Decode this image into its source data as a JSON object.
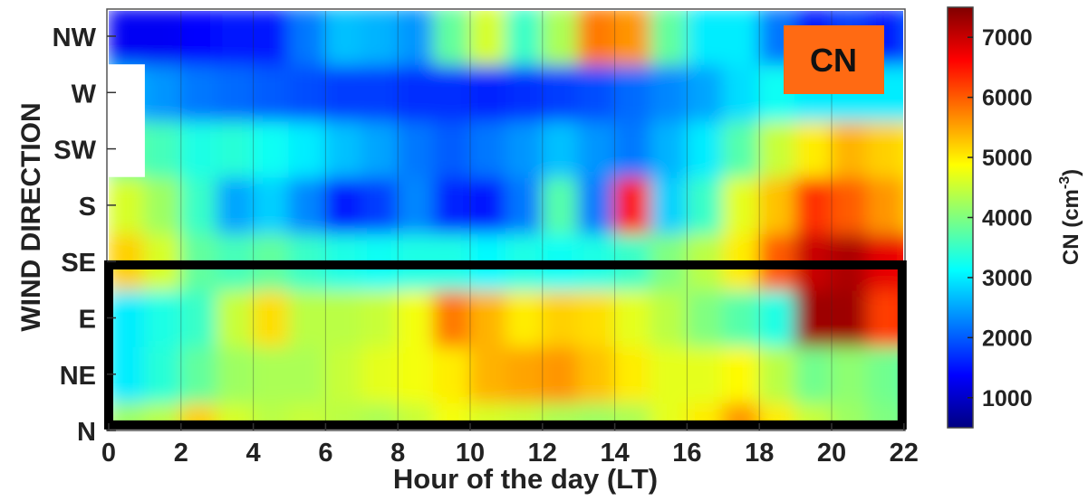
{
  "chart_data": {
    "type": "heatmap",
    "title": "",
    "xlabel": "Hour of the day (LT)",
    "ylabel": "WIND DIRECTION",
    "x_ticks": [
      0,
      2,
      4,
      6,
      8,
      10,
      12,
      14,
      16,
      18,
      20,
      22
    ],
    "xlim": [
      0,
      22
    ],
    "y_categories": [
      "N",
      "NE",
      "E",
      "SE",
      "S",
      "SW",
      "W",
      "NW"
    ],
    "colorbar": {
      "label": "CN (cm",
      "label_exponent": "-3",
      "label_close": ")",
      "ticks": [
        1000,
        2000,
        3000,
        4000,
        5000,
        6000,
        7000
      ],
      "range": [
        500,
        7500
      ],
      "colormap": "jet"
    },
    "badge": {
      "text": "CN",
      "color": "#ff6a13"
    },
    "highlight_box": {
      "from": "N",
      "to": "SE",
      "hours": [
        0,
        22
      ],
      "color": "#000000"
    },
    "grid": true,
    "missing_data": [
      {
        "hours": [
          0,
          1
        ],
        "directions": [
          "SW",
          "W"
        ]
      }
    ],
    "values": [
      [
        4200,
        4400,
        5200,
        4600,
        4400,
        4500,
        4400,
        4300,
        4500,
        4800,
        4600,
        4500,
        4300,
        4200,
        4300,
        4700,
        5000,
        5600,
        5000,
        4500,
        4200,
        4000,
        3800
      ],
      [
        3000,
        3400,
        3800,
        4200,
        4300,
        4300,
        4500,
        4700,
        4800,
        5000,
        5400,
        5500,
        5600,
        5300,
        5000,
        4700,
        4700,
        4900,
        4400,
        3900,
        4100,
        3900,
        3600
      ],
      [
        3000,
        3300,
        3500,
        4500,
        5100,
        4400,
        4400,
        4500,
        4800,
        5800,
        5400,
        5000,
        5200,
        5100,
        4700,
        4400,
        4000,
        3700,
        3300,
        7300,
        7300,
        6200,
        6500
      ],
      [
        5200,
        4600,
        3800,
        3600,
        3800,
        3500,
        3300,
        3200,
        3300,
        3300,
        3100,
        3300,
        3200,
        3300,
        3500,
        4000,
        4400,
        5000,
        6000,
        7000,
        7200,
        6800,
        6500
      ],
      [
        4600,
        4200,
        3500,
        2500,
        2800,
        2300,
        1500,
        1800,
        2300,
        1600,
        1500,
        2200,
        3700,
        2200,
        6500,
        2800,
        3500,
        4700,
        5300,
        6300,
        6000,
        5600,
        5200
      ],
      [
        3800,
        3600,
        3300,
        3400,
        3200,
        3000,
        2700,
        2500,
        2200,
        2000,
        2200,
        2400,
        2700,
        2400,
        2200,
        2600,
        3000,
        3700,
        4500,
        5000,
        5400,
        5200,
        5000
      ],
      [
        2600,
        2400,
        2200,
        2100,
        2000,
        1900,
        1800,
        1800,
        1700,
        1700,
        1600,
        1700,
        1800,
        1900,
        2100,
        2300,
        2500,
        2900,
        3200,
        3000,
        3000,
        3000,
        3000
      ],
      [
        1300,
        1300,
        1400,
        1500,
        1500,
        2200,
        2700,
        2600,
        2400,
        3800,
        4600,
        3500,
        4300,
        5800,
        5600,
        3800,
        3000,
        3000,
        2200,
        1500,
        1800,
        1500,
        2000
      ]
    ]
  }
}
